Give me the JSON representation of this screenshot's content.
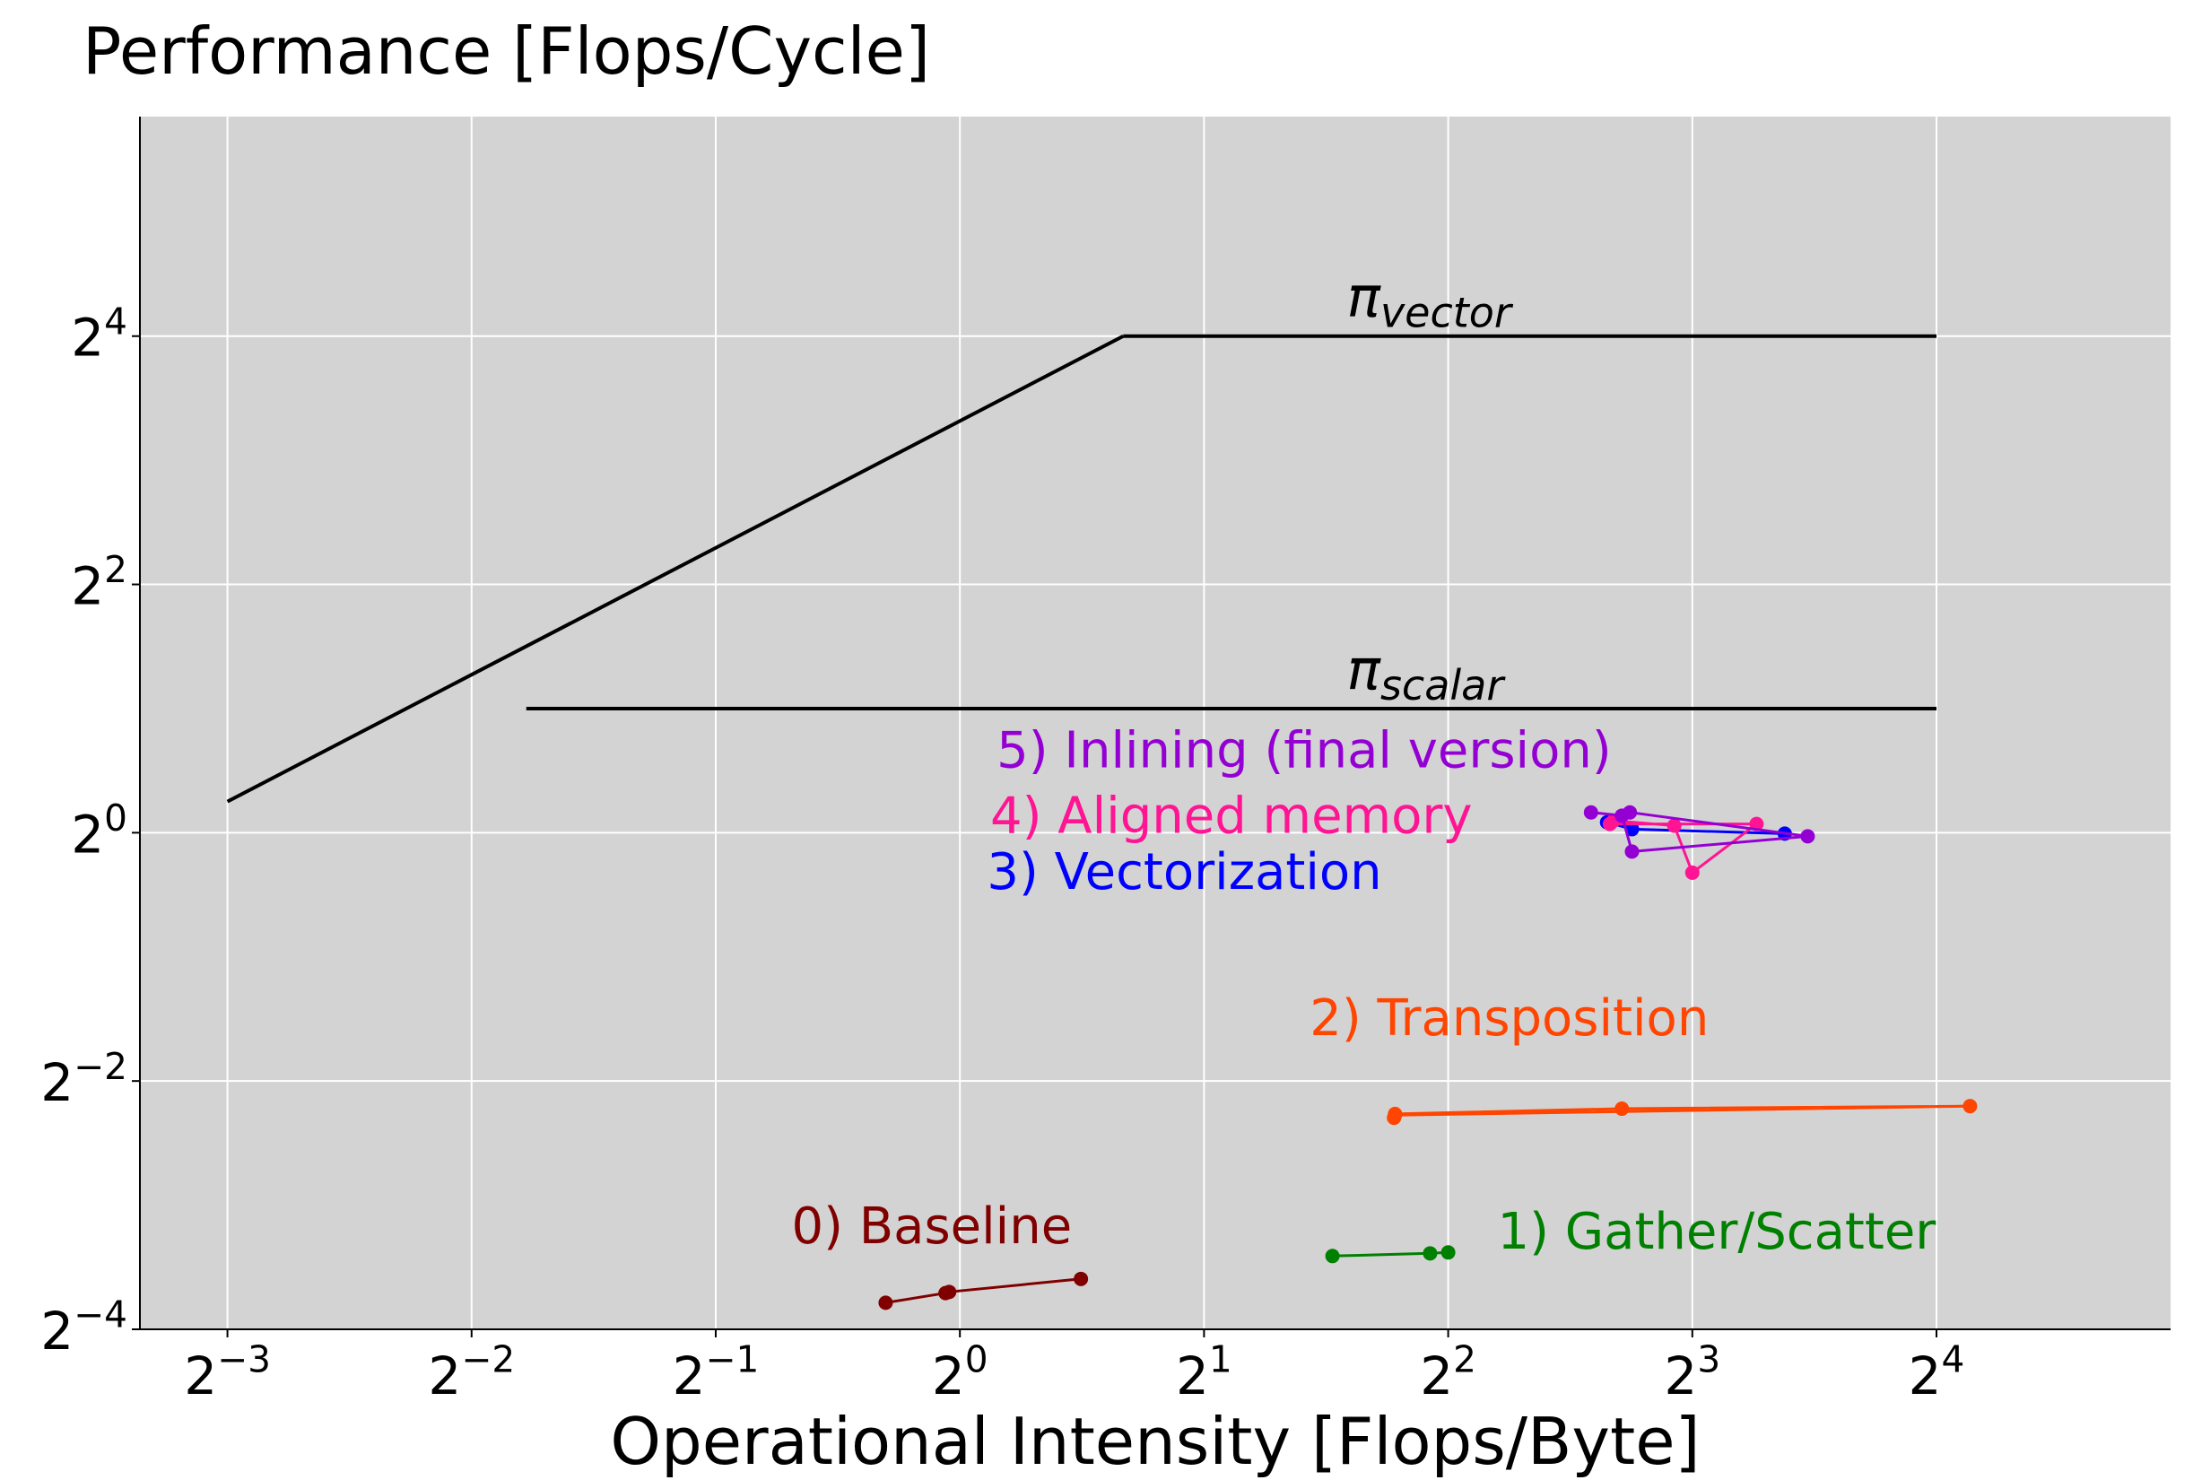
{
  "chart_data": {
    "type": "line",
    "title": "Performance [Flops/Cycle]",
    "xlabel": "Operational Intensity [Flops/Byte]",
    "ylabel": "",
    "x_scale": "log2",
    "y_scale": "log2",
    "xlim": [
      0.0975,
      31.1
    ],
    "ylim": [
      0.0625,
      54.5
    ],
    "grid": true,
    "background": "#d3d3d3",
    "x_ticks": [
      {
        "value": 0.125,
        "base": "2",
        "exp": "−3"
      },
      {
        "value": 0.25,
        "base": "2",
        "exp": "−2"
      },
      {
        "value": 0.5,
        "base": "2",
        "exp": "−1"
      },
      {
        "value": 1,
        "base": "2",
        "exp": "0"
      },
      {
        "value": 2,
        "base": "2",
        "exp": "1"
      },
      {
        "value": 4,
        "base": "2",
        "exp": "2"
      },
      {
        "value": 8,
        "base": "2",
        "exp": "3"
      },
      {
        "value": 16,
        "base": "2",
        "exp": "4"
      }
    ],
    "y_ticks": [
      {
        "value": 0.0625,
        "base": "2",
        "exp": "−4"
      },
      {
        "value": 0.25,
        "base": "2",
        "exp": "−2"
      },
      {
        "value": 1,
        "base": "2",
        "exp": "0"
      },
      {
        "value": 4,
        "base": "2",
        "exp": "2"
      },
      {
        "value": 16,
        "base": "2",
        "exp": "4"
      }
    ],
    "roofline": {
      "color": "#000000",
      "bandwidth_line": [
        [
          0.125,
          1.19
        ],
        [
          1.59,
          16
        ]
      ],
      "vector_ceiling": {
        "x": [
          1.59,
          16
        ],
        "y": 16,
        "label_symbol": "π",
        "label_sub": "vector",
        "label_x": 3.0
      },
      "scalar_ceiling": {
        "x": [
          0.292,
          16
        ],
        "y": 2,
        "label_symbol": "π",
        "label_sub": "scalar",
        "label_x": 3.0
      }
    },
    "series": [
      {
        "name": "0) Baseline",
        "color": "#800000",
        "points": [
          [
            0.81,
            0.0725
          ],
          [
            0.96,
            0.0765
          ],
          [
            0.97,
            0.077
          ],
          [
            1.41,
            0.0828
          ]
        ],
        "label_x": 0.62,
        "label_y": 0.101
      },
      {
        "name": "1) Gather/Scatter",
        "color": "#008000",
        "points": [
          [
            2.88,
            0.0941
          ],
          [
            3.8,
            0.0955
          ],
          [
            4.0,
            0.096
          ]
        ],
        "label_x": 4.6,
        "label_y": 0.098
      },
      {
        "name": "2) Transposition",
        "color": "#ff4500",
        "points": [
          [
            3.44,
            0.2067
          ],
          [
            17.6,
            0.2173
          ],
          [
            6.55,
            0.2142
          ],
          [
            3.44,
            0.208
          ],
          [
            3.43,
            0.2035
          ]
        ],
        "label_x": 2.7,
        "label_y": 0.323
      },
      {
        "name": "3) Vectorization",
        "color": "#0000ff",
        "points": [
          [
            6.28,
            1.06
          ],
          [
            6.74,
            1.02
          ],
          [
            10.4,
            0.995
          ]
        ],
        "label_x": 1.08,
        "label_y": 0.73
      },
      {
        "name": "4) Aligned memory",
        "color": "#ff1493",
        "points": [
          [
            6.33,
            1.05
          ],
          [
            9.6,
            1.05
          ],
          [
            8.0,
            0.8
          ],
          [
            7.6,
            1.04
          ],
          [
            6.4,
            1.07
          ]
        ],
        "label_x": 1.09,
        "label_y": 1.0
      },
      {
        "name": "5) Inlining (final version)",
        "color": "#9400d3",
        "points": [
          [
            6.0,
            1.12
          ],
          [
            6.55,
            1.1
          ],
          [
            6.74,
            0.9
          ],
          [
            11.1,
            0.98
          ],
          [
            6.7,
            1.12
          ]
        ],
        "label_x": 1.11,
        "label_y": 1.44
      }
    ]
  }
}
